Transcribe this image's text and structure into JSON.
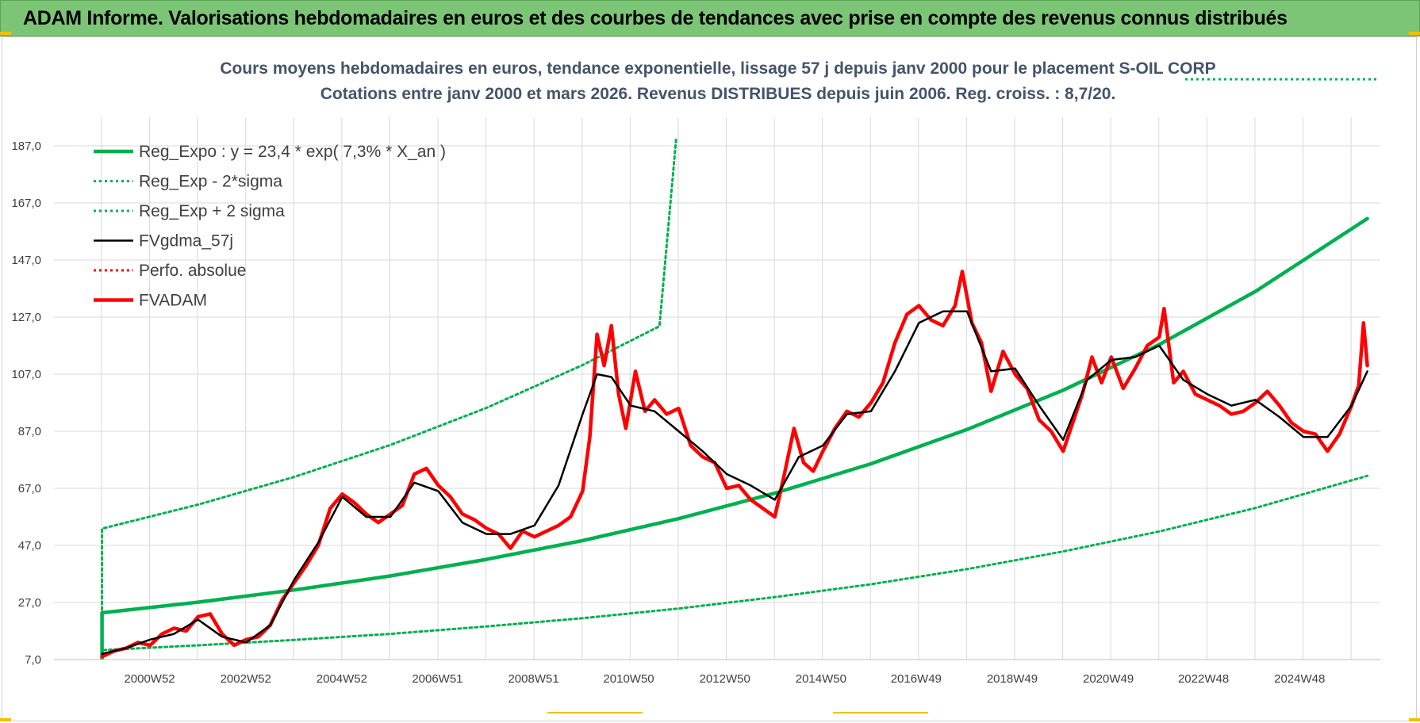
{
  "banner": {
    "title": "ADAM Informe. Valorisations hebdomadaires en euros et des courbes de tendances avec prise en compte des revenus connus distribués"
  },
  "colors": {
    "banner_bg": "#7cc576",
    "reg_green": "#00b050",
    "mm_black": "#000000",
    "adam_red": "#ff0000",
    "grid": "#d9d9d9"
  },
  "chart_data": {
    "type": "line",
    "title": [
      "Cours moyens hebdomadaires en euros, tendance exponentielle, lissage 57 j depuis janv 2000 pour le placement S-OIL CORP",
      "Cotations entre janv 2000 et mars 2026. Revenus DISTRIBUES depuis juin 2006. Reg. croiss. : 8,7/20."
    ],
    "xlabel": "",
    "ylabel": "",
    "ylim": [
      7,
      197
    ],
    "yticks": [
      "7,0",
      "27,0",
      "47,0",
      "67,0",
      "87,0",
      "107,0",
      "127,0",
      "147,0",
      "167,0",
      "187,0"
    ],
    "xlim": [
      1999.0,
      2026.6
    ],
    "xticks": [
      {
        "label": "2000W52",
        "x": 2000.99
      },
      {
        "label": "2002W52",
        "x": 2002.99
      },
      {
        "label": "2004W52",
        "x": 2004.99
      },
      {
        "label": "2006W51",
        "x": 2006.98
      },
      {
        "label": "2008W51",
        "x": 2008.98
      },
      {
        "label": "2010W50",
        "x": 2010.96
      },
      {
        "label": "2012W50",
        "x": 2012.96
      },
      {
        "label": "2014W50",
        "x": 2014.96
      },
      {
        "label": "2016W49",
        "x": 2016.94
      },
      {
        "label": "2018W49",
        "x": 2018.94
      },
      {
        "label": "2020W49",
        "x": 2020.94
      },
      {
        "label": "2022W48",
        "x": 2022.92
      },
      {
        "label": "2024W48",
        "x": 2024.92
      }
    ],
    "grid": true,
    "legend_position": "top-left",
    "series": [
      {
        "name": "Reg_Expo : y = 23,4 * exp( 7,3% *  X_an )",
        "key": "reg",
        "style": "solid-thick",
        "color": "#00b050",
        "x": [
          2000.0,
          2002.0,
          2004.0,
          2006.0,
          2008.0,
          2010.0,
          2012.0,
          2014.0,
          2016.0,
          2018.0,
          2020.0,
          2022.0,
          2024.0,
          2026.33
        ],
        "y": [
          23.4,
          27.1,
          31.4,
          36.3,
          42.1,
          48.7,
          56.4,
          65.3,
          75.6,
          87.6,
          101.4,
          117.4,
          136.0,
          161.5
        ]
      },
      {
        "name": "Reg_Exp - 2*sigma",
        "key": "low",
        "style": "dotted",
        "color": "#00b050",
        "x": [
          2000.0,
          2002.0,
          2004.0,
          2006.0,
          2008.0,
          2010.0,
          2012.0,
          2014.0,
          2016.0,
          2018.0,
          2020.0,
          2022.0,
          2024.0,
          2026.33
        ],
        "y": [
          10.3,
          12.0,
          13.9,
          16.0,
          18.6,
          21.5,
          24.9,
          28.9,
          33.4,
          38.7,
          44.9,
          51.9,
          60.1,
          71.4
        ]
      },
      {
        "name": "Reg_Exp + 2 sigma",
        "key": "high",
        "style": "dotted",
        "color": "#00b050",
        "x": [
          2000.0,
          2002.0,
          2004.0,
          2006.0,
          2008.0,
          2010.0,
          2011.6,
          2011.95
        ],
        "y": [
          52.9,
          61.3,
          71.0,
          82.2,
          95.2,
          110.2,
          123.8,
          190.0
        ]
      },
      {
        "name": "FVgdma_57j",
        "key": "mm",
        "style": "solid",
        "color": "#000000",
        "x": [
          2000.0,
          2000.5,
          2001.0,
          2001.5,
          2002.0,
          2002.5,
          2003.0,
          2003.5,
          2004.0,
          2004.5,
          2005.0,
          2005.5,
          2006.0,
          2006.5,
          2007.0,
          2007.5,
          2008.0,
          2008.5,
          2009.0,
          2009.5,
          2010.0,
          2010.3,
          2010.6,
          2011.0,
          2011.5,
          2012.0,
          2012.5,
          2013.0,
          2013.5,
          2014.0,
          2014.5,
          2015.0,
          2015.5,
          2016.0,
          2016.5,
          2017.0,
          2017.5,
          2018.0,
          2018.5,
          2019.0,
          2019.5,
          2020.0,
          2020.5,
          2021.0,
          2021.5,
          2022.0,
          2022.5,
          2023.0,
          2023.5,
          2024.0,
          2024.5,
          2025.0,
          2025.5,
          2026.0,
          2026.33
        ],
        "y": [
          9,
          11,
          14,
          16,
          21,
          15,
          13,
          19,
          35,
          48,
          64,
          57,
          57,
          69,
          66,
          55,
          51,
          51,
          54,
          68,
          93,
          107,
          106,
          96,
          94,
          87,
          80,
          72,
          68,
          63,
          78,
          82,
          93,
          94,
          108,
          125,
          129,
          129,
          108,
          109,
          96,
          84,
          105,
          112,
          113,
          117,
          105,
          100,
          96,
          98,
          92,
          85,
          85,
          96,
          108
        ]
      },
      {
        "name": "Perfo. absolue",
        "key": "perfo",
        "style": "dotted",
        "color": "#ff0000",
        "x": [],
        "y": []
      },
      {
        "name": "FVADAM",
        "key": "adam",
        "style": "solid-thick",
        "color": "#ff0000",
        "x": [
          2000.0,
          2000.25,
          2000.5,
          2000.75,
          2001.0,
          2001.25,
          2001.5,
          2001.75,
          2002.0,
          2002.25,
          2002.5,
          2002.75,
          2003.0,
          2003.25,
          2003.5,
          2003.75,
          2004.0,
          2004.25,
          2004.5,
          2004.75,
          2005.0,
          2005.25,
          2005.5,
          2005.75,
          2006.0,
          2006.25,
          2006.5,
          2006.75,
          2007.0,
          2007.25,
          2007.5,
          2007.75,
          2008.0,
          2008.25,
          2008.5,
          2008.75,
          2009.0,
          2009.25,
          2009.5,
          2009.75,
          2010.0,
          2010.15,
          2010.3,
          2010.45,
          2010.6,
          2010.75,
          2010.9,
          2011.1,
          2011.3,
          2011.5,
          2011.75,
          2012.0,
          2012.25,
          2012.5,
          2012.75,
          2013.0,
          2013.25,
          2013.5,
          2013.75,
          2014.0,
          2014.2,
          2014.4,
          2014.6,
          2014.8,
          2015.0,
          2015.25,
          2015.5,
          2015.75,
          2016.0,
          2016.25,
          2016.5,
          2016.75,
          2017.0,
          2017.25,
          2017.5,
          2017.75,
          2017.9,
          2018.1,
          2018.3,
          2018.5,
          2018.75,
          2019.0,
          2019.25,
          2019.5,
          2019.75,
          2020.0,
          2020.2,
          2020.4,
          2020.6,
          2020.8,
          2021.0,
          2021.25,
          2021.5,
          2021.75,
          2022.0,
          2022.1,
          2022.3,
          2022.5,
          2022.75,
          2023.0,
          2023.25,
          2023.5,
          2023.75,
          2024.0,
          2024.25,
          2024.5,
          2024.75,
          2025.0,
          2025.25,
          2025.5,
          2025.75,
          2026.0,
          2026.15,
          2026.25,
          2026.33
        ],
        "y": [
          8,
          10,
          11,
          13,
          12,
          16,
          18,
          17,
          22,
          23,
          16,
          12,
          14,
          15,
          19,
          28,
          34,
          40,
          47,
          60,
          65,
          62,
          58,
          55,
          58,
          61,
          72,
          74,
          68,
          64,
          58,
          56,
          53,
          51,
          46,
          52,
          50,
          52,
          54,
          57,
          66,
          85,
          121,
          110,
          124,
          100,
          88,
          108,
          94,
          98,
          93,
          95,
          82,
          78,
          76,
          67,
          68,
          63,
          60,
          57,
          72,
          88,
          76,
          73,
          80,
          88,
          94,
          92,
          97,
          104,
          118,
          128,
          131,
          126,
          124,
          131,
          143,
          125,
          118,
          101,
          115,
          107,
          102,
          91,
          87,
          80,
          90,
          100,
          113,
          104,
          113,
          102,
          109,
          117,
          120,
          130,
          104,
          108,
          100,
          98,
          96,
          93,
          94,
          97,
          101,
          96,
          90,
          87,
          86,
          80,
          86,
          96,
          103,
          125,
          110
        ]
      }
    ]
  }
}
